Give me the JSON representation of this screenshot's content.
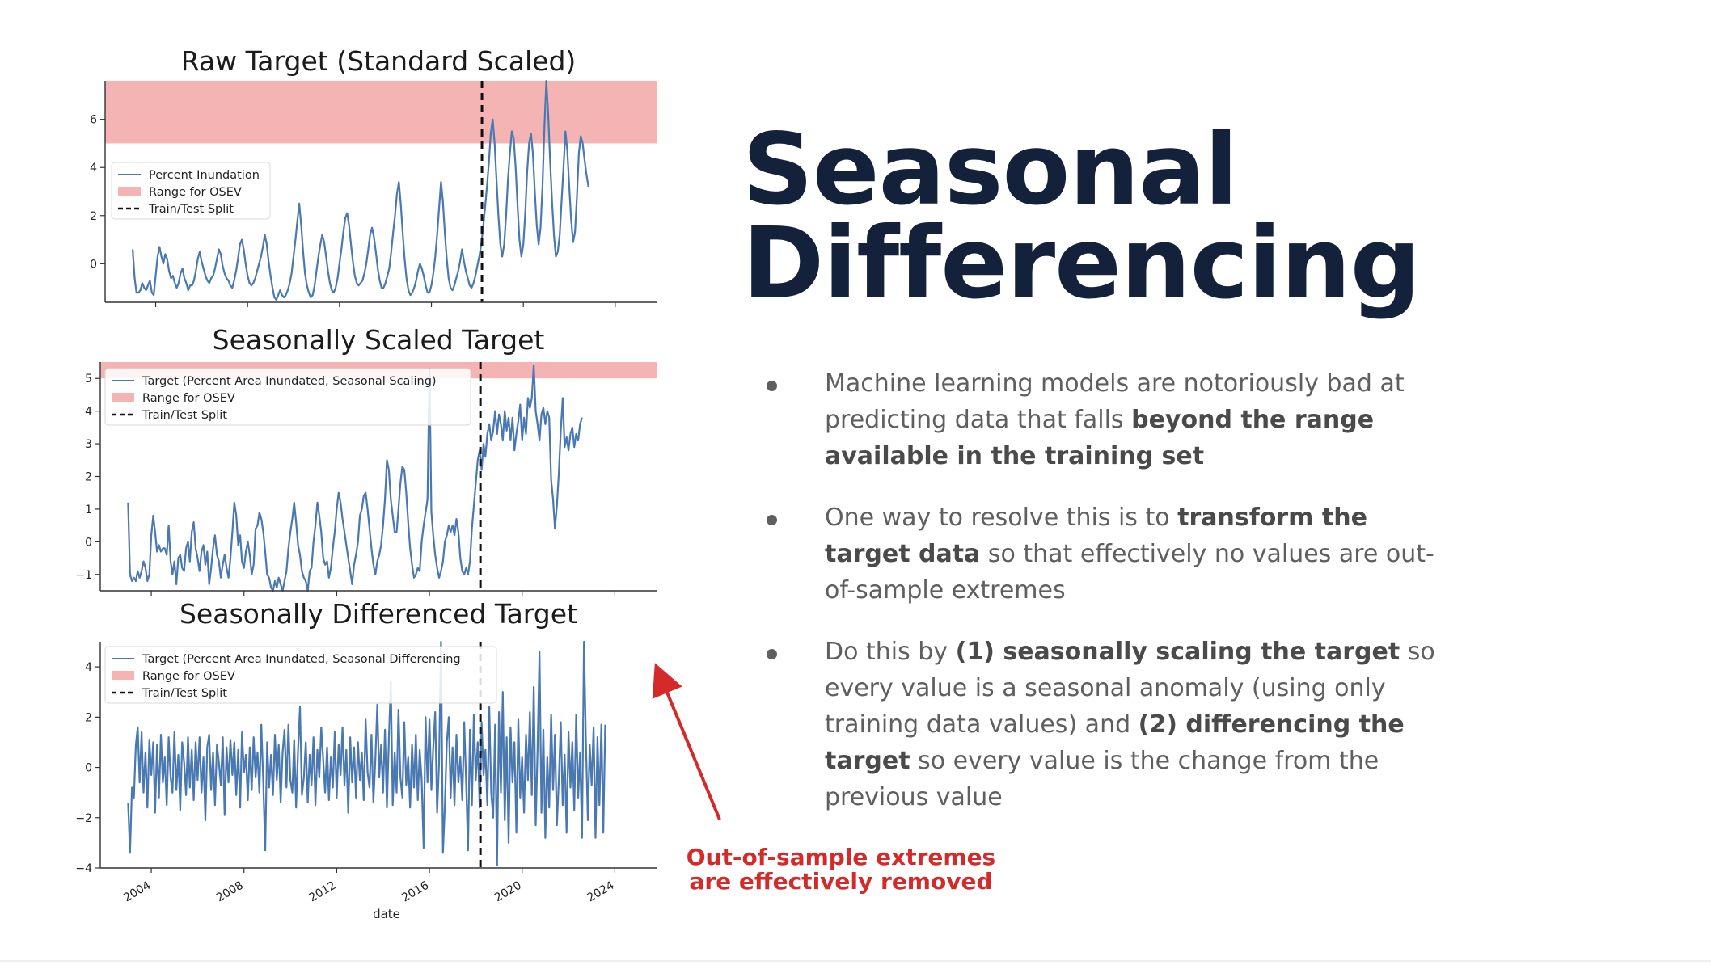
{
  "slide": {
    "title_line1": "Seasonal",
    "title_line2": "Differencing",
    "colors": {
      "title": "#14213a",
      "body": "#5f5f5f",
      "annotation": "#d32a2a",
      "series": "#4a78b0",
      "osev_band": "#f4b4b4"
    },
    "bullets": [
      {
        "segments": [
          {
            "text": "Machine learning models are notoriously bad at predicting data that falls ",
            "bold": false
          },
          {
            "text": "beyond the range available in the training set",
            "bold": true
          }
        ]
      },
      {
        "segments": [
          {
            "text": "One way to resolve this is to ",
            "bold": false
          },
          {
            "text": "transform the target data",
            "bold": true
          },
          {
            "text": " so that effectively no values are out-of-sample extremes",
            "bold": false
          }
        ]
      },
      {
        "segments": [
          {
            "text": "Do this by ",
            "bold": false
          },
          {
            "text": "(1) seasonally scaling the target",
            "bold": true
          },
          {
            "text": " so every value is a seasonal anomaly (using only training data values) and ",
            "bold": false
          },
          {
            "text": "(2) differencing the target",
            "bold": true
          },
          {
            "text": " so every value is the change from the previous value",
            "bold": false
          }
        ]
      }
    ],
    "annotation_line1": "Out-of-sample extremes",
    "annotation_line2": "are effectively removed"
  },
  "chart_data": [
    {
      "type": "line",
      "title": "Raw Target (Standard Scaled)",
      "xlabel": "",
      "ylabel": "",
      "xlim": [
        2001.8,
        2025.8
      ],
      "ylim": [
        -1.6,
        7.6
      ],
      "yticks": [
        0,
        2,
        4,
        6
      ],
      "xticks": [
        2004,
        2008,
        2012,
        2016,
        2020,
        2024
      ],
      "xtick_labels_shown": false,
      "osev_range": [
        5.0,
        7.6
      ],
      "split_x": 2018.2,
      "legend": [
        "Percent Inundation",
        "Range for OSEV",
        "Train/Test Split"
      ],
      "legend_position": "center-left",
      "series": [
        {
          "name": "Percent Inundation",
          "x_start": 2003.0,
          "x_step": 0.0833333,
          "values": [
            0.6,
            -0.6,
            -1.2,
            -1.2,
            -1.1,
            -0.8,
            -1.0,
            -1.1,
            -0.9,
            -0.7,
            -1.2,
            -1.3,
            -0.5,
            0.3,
            0.7,
            0.3,
            0.0,
            0.4,
            0.2,
            -0.3,
            -0.6,
            -0.5,
            -0.8,
            -1.0,
            -0.8,
            -0.4,
            -0.2,
            -0.6,
            -0.8,
            -1.1,
            -0.9,
            -0.9,
            -0.7,
            -0.3,
            0.2,
            0.5,
            0.1,
            -0.2,
            -0.5,
            -0.7,
            -0.8,
            -0.6,
            -0.5,
            -0.2,
            0.2,
            0.6,
            0.4,
            -0.1,
            -0.4,
            -0.6,
            -0.7,
            -0.9,
            -1.0,
            -0.7,
            -0.3,
            0.2,
            0.8,
            1.0,
            0.6,
            0.0,
            -0.5,
            -0.8,
            -0.9,
            -0.8,
            -0.6,
            -0.3,
            0.0,
            0.3,
            0.7,
            1.2,
            0.8,
            0.1,
            -0.5,
            -1.0,
            -1.4,
            -1.5,
            -1.3,
            -1.1,
            -1.3,
            -1.4,
            -1.3,
            -1.1,
            -0.8,
            -0.4,
            0.3,
            1.0,
            1.8,
            2.5,
            1.6,
            0.5,
            -0.4,
            -0.9,
            -1.2,
            -1.4,
            -1.3,
            -0.9,
            -0.3,
            0.3,
            0.8,
            1.2,
            0.9,
            0.3,
            -0.3,
            -0.8,
            -1.1,
            -1.2,
            -1.0,
            -0.6,
            0.0,
            0.6,
            1.3,
            1.9,
            2.1,
            1.6,
            0.8,
            0.1,
            -0.5,
            -0.8,
            -0.9,
            -0.8,
            -0.7,
            -0.4,
            0.0,
            0.6,
            1.2,
            1.5,
            1.1,
            0.5,
            -0.2,
            -0.7,
            -1.0,
            -1.0,
            -0.8,
            -0.5,
            -0.2,
            0.5,
            1.3,
            2.0,
            2.9,
            3.4,
            2.5,
            1.3,
            0.2,
            -0.6,
            -1.1,
            -1.3,
            -1.2,
            -1.0,
            -0.7,
            -0.3,
            0.0,
            -0.2,
            -0.5,
            -0.9,
            -1.2,
            -1.2,
            -0.9,
            -0.4,
            0.3,
            1.2,
            2.3,
            3.4,
            2.6,
            1.3,
            0.2,
            -0.6,
            -1.0,
            -1.1,
            -0.9,
            -0.6,
            -0.3,
            0.1,
            0.6,
            0.1,
            -0.3,
            -0.6,
            -0.9,
            -1.0,
            -0.8,
            -0.5,
            -0.1,
            0.3,
            0.8,
            1.5,
            2.3,
            3.2,
            4.2,
            5.4,
            6.0,
            5.0,
            3.5,
            2.0,
            0.8,
            0.3,
            0.8,
            2.0,
            3.5,
            4.6,
            5.5,
            5.2,
            4.0,
            2.4,
            1.0,
            0.3,
            0.8,
            2.1,
            3.8,
            5.0,
            5.4,
            4.6,
            3.0,
            1.6,
            0.8,
            1.5,
            3.2,
            5.6,
            7.6,
            6.2,
            4.3,
            2.6,
            1.2,
            0.3,
            0.5,
            1.2,
            2.6,
            4.0,
            5.5,
            4.7,
            3.2,
            1.8,
            0.9,
            1.3,
            2.8,
            4.6,
            5.3,
            5.0,
            4.3,
            3.7,
            3.2
          ]
        }
      ]
    },
    {
      "type": "line",
      "title": "Seasonally Scaled Target",
      "xlabel": "",
      "ylabel": "",
      "xlim": [
        2001.8,
        2025.8
      ],
      "ylim": [
        -1.5,
        5.5
      ],
      "yticks": [
        -1,
        0,
        1,
        2,
        3,
        4,
        5
      ],
      "ytick_labels": [
        "−1",
        "0",
        "1",
        "2",
        "3",
        "4",
        "5"
      ],
      "xticks": [
        2004,
        2008,
        2012,
        2016,
        2020,
        2024
      ],
      "xtick_labels_shown": false,
      "osev_range": [
        5.0,
        5.5
      ],
      "split_x": 2018.2,
      "legend": [
        "Target (Percent Area Inundated, Seasonal Scaling)",
        "Range for OSEV",
        "Train/Test Split"
      ],
      "legend_position": "top-left",
      "series": [
        {
          "name": "Target (Percent Area Inundated, Seasonal Scaling)",
          "x_start": 2003.0,
          "x_step": 0.0833333,
          "values": [
            1.2,
            -1.0,
            -1.2,
            -1.1,
            -1.2,
            -0.9,
            -1.1,
            -0.9,
            -0.6,
            -0.8,
            -1.2,
            -1.0,
            0.2,
            0.8,
            0.3,
            -0.3,
            -0.1,
            -0.3,
            -0.2,
            -0.2,
            -0.4,
            0.5,
            -0.6,
            -1.0,
            -0.6,
            -1.3,
            -0.5,
            -0.4,
            -0.8,
            -0.9,
            -0.2,
            0.0,
            -0.6,
            0.3,
            0.6,
            -0.2,
            -0.5,
            -0.9,
            -0.3,
            -0.1,
            -0.7,
            -0.3,
            -1.3,
            -0.8,
            -0.2,
            0.2,
            -0.4,
            -0.6,
            -1.1,
            -0.7,
            -0.4,
            -0.8,
            -1.1,
            -0.5,
            0.3,
            1.2,
            0.8,
            -0.1,
            0.2,
            -0.6,
            -0.8,
            -0.3,
            0.0,
            -0.4,
            -1.0,
            -0.7,
            0.4,
            0.5,
            0.9,
            0.7,
            0.3,
            -0.3,
            -1.0,
            -1.1,
            -1.4,
            -1.5,
            -1.2,
            -1.4,
            -1.1,
            -1.3,
            -1.5,
            -1.2,
            -0.9,
            -0.2,
            0.3,
            0.7,
            1.2,
            0.6,
            -0.1,
            -0.4,
            -0.9,
            -1.1,
            -1.2,
            -1.5,
            -0.9,
            -0.8,
            0.0,
            0.5,
            1.2,
            0.8,
            0.3,
            -0.5,
            -0.7,
            -0.6,
            -1.1,
            -0.8,
            -0.2,
            0.3,
            1.0,
            1.5,
            1.2,
            0.7,
            0.3,
            -0.1,
            -0.5,
            -0.9,
            -1.3,
            -0.7,
            -0.4,
            0.0,
            0.8,
            1.0,
            1.4,
            1.5,
            1.0,
            0.4,
            -0.2,
            -0.7,
            -1.0,
            -0.6,
            -0.4,
            -0.1,
            0.5,
            1.3,
            2.5,
            2.2,
            1.3,
            0.8,
            0.3,
            0.3,
            1.0,
            1.8,
            2.3,
            2.2,
            1.5,
            0.6,
            -0.2,
            -0.7,
            -1.1,
            -1.0,
            -0.8,
            -0.9,
            0.0,
            0.5,
            0.9,
            1.3,
            5.3,
            0.9,
            0.2,
            -0.4,
            -0.8,
            -1.1,
            -0.9,
            -0.6,
            0.0,
            0.2,
            0.5,
            0.3,
            0.5,
            0.2,
            0.7,
            0.3,
            -0.5,
            -0.9,
            -1.0,
            -0.8,
            -1.0,
            -0.6,
            0.4,
            1.1,
            1.8,
            2.5,
            2.8,
            2.2,
            3.0,
            2.6,
            3.3,
            3.6,
            3.1,
            3.4,
            4.0,
            3.3,
            3.9,
            3.6,
            3.1,
            4.0,
            3.4,
            3.8,
            3.1,
            3.8,
            2.8,
            3.3,
            3.7,
            4.2,
            3.1,
            3.8,
            3.3,
            4.4,
            4.1,
            4.4,
            5.4,
            4.0,
            3.6,
            3.1,
            3.9,
            4.1,
            3.6,
            4.0,
            3.8,
            1.9,
            1.3,
            0.4,
            1.1,
            2.1,
            3.4,
            4.4,
            2.9,
            3.2,
            2.8,
            3.3,
            3.5,
            2.9,
            3.3,
            3.1,
            3.6,
            3.8
          ]
        }
      ]
    },
    {
      "type": "line",
      "title": "Seasonally Differenced Target",
      "xlabel": "date",
      "ylabel": "",
      "xlim": [
        2001.8,
        2025.8
      ],
      "ylim": [
        -4.0,
        5.0
      ],
      "yticks": [
        -4,
        -2,
        0,
        2,
        4
      ],
      "ytick_labels": [
        "−4",
        "−2",
        "0",
        "2",
        "4"
      ],
      "xticks": [
        2004,
        2008,
        2012,
        2016,
        2020,
        2024
      ],
      "xtick_labels": [
        "2004",
        "2008",
        "2012",
        "2016",
        "2020",
        "2024"
      ],
      "xtick_labels_shown": true,
      "osev_range": [
        5.0,
        5.0
      ],
      "split_x": 2018.2,
      "legend": [
        "Target (Percent Area Inundated, Seasonal Differencing",
        "Range for OSEV",
        "Train/Test Split"
      ],
      "legend_position": "top-left",
      "series": [
        {
          "name": "Target (Percent Area Inundated, Seasonal Differencing",
          "x_start": 2003.0,
          "x_step": 0.0833333,
          "values": [
            -1.4,
            -3.4,
            -0.8,
            -1.2,
            0.9,
            1.6,
            -0.6,
            1.4,
            -1.0,
            0.6,
            -1.6,
            1.1,
            -0.3,
            1.0,
            -1.8,
            0.9,
            -1.2,
            1.3,
            -0.6,
            0.4,
            -1.5,
            1.2,
            -0.4,
            -1.0,
            1.4,
            -0.9,
            0.5,
            -1.7,
            1.0,
            0.2,
            -1.1,
            1.2,
            -0.8,
            0.7,
            -1.3,
            1.0,
            -0.5,
            1.2,
            -1.0,
            0.4,
            -2.1,
            0.8,
            1.3,
            -0.9,
            0.6,
            -1.5,
            0.9,
            0.2,
            -0.7,
            1.2,
            -1.9,
            0.8,
            -0.6,
            1.1,
            -0.3,
            1.0,
            -1.1,
            0.7,
            -1.6,
            1.4,
            -0.2,
            0.5,
            -1.3,
            0.8,
            -0.9,
            1.2,
            -0.4,
            0.6,
            -1.0,
            1.7,
            -0.6,
            -3.3,
            1.0,
            -0.8,
            0.5,
            -1.1,
            1.3,
            -0.5,
            0.9,
            -1.4,
            0.6,
            1.5,
            -0.8,
            1.7,
            -0.5,
            -1.0,
            1.1,
            -1.6,
            0.7,
            2.4,
            -1.1,
            -0.4,
            1.0,
            -1.4,
            0.5,
            -0.7,
            1.2,
            -1.5,
            0.7,
            -0.4,
            1.6,
            0.3,
            -1.0,
            0.8,
            -1.3,
            0.4,
            -0.8,
            1.4,
            -1.2,
            0.9,
            -0.3,
            1.6,
            -0.7,
            0.7,
            -1.8,
            1.2,
            -0.6,
            0.8,
            -1.2,
            1.0,
            -0.5,
            0.6,
            -1.3,
            1.9,
            -0.2,
            -0.8,
            1.3,
            -1.4,
            0.3,
            2.5,
            -0.4,
            0.9,
            -1.0,
            1.5,
            -1.6,
            1.1,
            3.4,
            -1.5,
            0.6,
            -1.0,
            2.3,
            -0.4,
            -1.2,
            1.8,
            -0.7,
            0.4,
            -1.6,
            0.9,
            -0.8,
            1.3,
            -1.3,
            0.7,
            -0.5,
            -3.2,
            2.0,
            -0.6,
            1.9,
            -0.9,
            0.8,
            2.2,
            -1.8,
            0.2,
            5.4,
            -3.4,
            -1.5,
            1.0,
            2.0,
            -1.2,
            0.8,
            -1.5,
            1.3,
            -0.6,
            0.4,
            -1.3,
            1.8,
            -0.6,
            -3.3,
            1.5,
            -1.5,
            2.1,
            -0.5,
            1.0,
            -1.6,
            1.8,
            -0.3,
            0.7,
            -1.5,
            2.4,
            -1.0,
            -2.0,
            1.7,
            -3.9,
            2.2,
            -1.0,
            3.0,
            -2.1,
            1.2,
            -3.0,
            1.6,
            -0.6,
            1.0,
            -2.6,
            1.9,
            -1.2,
            0.4,
            -1.8,
            1.3,
            -0.5,
            2.2,
            -1.1,
            3.2,
            -2.3,
            0.7,
            4.6,
            -1.8,
            1.5,
            -2.8,
            0.4,
            -1.6,
            2.1,
            -0.9,
            1.3,
            -2.3,
            -0.5,
            1.8,
            -1.5,
            0.5,
            -2.6,
            1.4,
            -0.8,
            1.0,
            -1.7,
            2.1,
            -1.2,
            0.6,
            -2.8,
            5.0,
            1.0,
            -2.1,
            0.9,
            -0.7,
            1.6,
            -2.8,
            1.2,
            -1.5,
            1.7,
            -2.6,
            1.7
          ]
        }
      ]
    }
  ]
}
